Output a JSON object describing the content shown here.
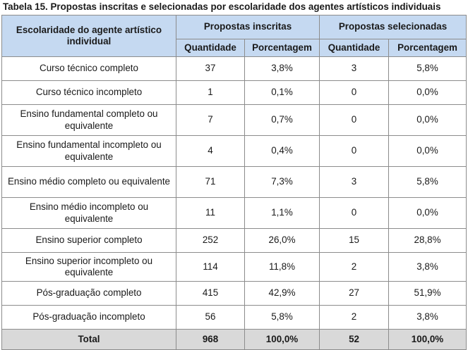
{
  "caption": "Tabela 15. Propostas inscritas e selecionadas por escolaridade dos agentes artísticos individuais",
  "header": {
    "first_col": "Escolaridade do agente artístico individual",
    "group_inscritas": "Propostas inscritas",
    "group_selecionadas": "Propostas selecionadas",
    "sub": [
      "Quantidade",
      "Porcentagem",
      "Quantidade",
      "Porcentagem"
    ]
  },
  "rows": [
    {
      "label": "Curso técnico completo",
      "q1": "37",
      "p1": "3,8%",
      "q2": "3",
      "p2": "5,8%"
    },
    {
      "label": "Curso técnico incompleto",
      "q1": "1",
      "p1": "0,1%",
      "q2": "0",
      "p2": "0,0%"
    },
    {
      "label": "Ensino fundamental completo ou equivalente",
      "q1": "7",
      "p1": "0,7%",
      "q2": "0",
      "p2": "0,0%"
    },
    {
      "label": "Ensino fundamental incompleto ou equivalente",
      "q1": "4",
      "p1": "0,4%",
      "q2": "0",
      "p2": "0,0%"
    },
    {
      "label": "Ensino médio completo ou equivalente",
      "q1": "71",
      "p1": "7,3%",
      "q2": "3",
      "p2": "5,8%"
    },
    {
      "label": "Ensino médio incompleto ou equivalente",
      "q1": "11",
      "p1": "1,1%",
      "q2": "0",
      "p2": "0,0%"
    },
    {
      "label": "Ensino superior completo",
      "q1": "252",
      "p1": "26,0%",
      "q2": "15",
      "p2": "28,8%"
    },
    {
      "label": "Ensino superior incompleto ou equivalente",
      "q1": "114",
      "p1": "11,8%",
      "q2": "2",
      "p2": "3,8%"
    },
    {
      "label": "Pós-graduação completo",
      "q1": "415",
      "p1": "42,9%",
      "q2": "27",
      "p2": "51,9%"
    },
    {
      "label": "Pós-graduação incompleto",
      "q1": "56",
      "p1": "5,8%",
      "q2": "2",
      "p2": "3,8%"
    }
  ],
  "total": {
    "label": "Total",
    "q1": "968",
    "p1": "100,0%",
    "q2": "52",
    "p2": "100,0%"
  }
}
